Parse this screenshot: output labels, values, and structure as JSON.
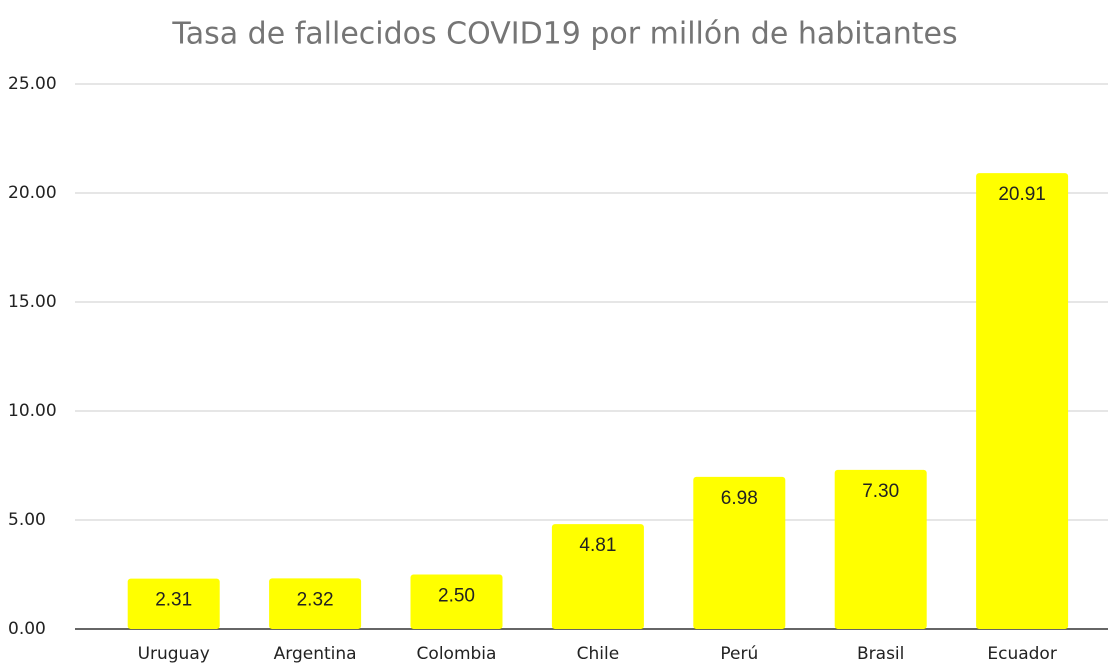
{
  "chart_data": {
    "type": "bar",
    "title": "Tasa de fallecidos COVID19 por millón de habitantes",
    "categories": [
      "Uruguay",
      "Argentina",
      "Colombia",
      "Chile",
      "Perú",
      "Brasil",
      "Ecuador"
    ],
    "values": [
      2.31,
      2.32,
      2.5,
      4.81,
      6.98,
      7.3,
      20.91
    ],
    "value_labels": [
      "2.31",
      "2.32",
      "2.50",
      "4.81",
      "6.98",
      "7.30",
      "20.91"
    ],
    "color": "#ffff00",
    "ylim": [
      0,
      25
    ],
    "yticks": [
      {
        "value": 0,
        "label": "0.00"
      },
      {
        "value": 5,
        "label": "5.00"
      },
      {
        "value": 10,
        "label": "10.00"
      },
      {
        "value": 15,
        "label": "15.00"
      },
      {
        "value": 20,
        "label": "20.00"
      },
      {
        "value": 25,
        "label": "25.00"
      }
    ],
    "grid": true
  }
}
